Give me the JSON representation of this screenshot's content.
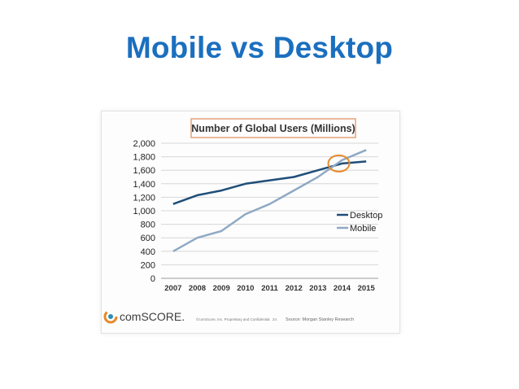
{
  "slide": {
    "title": "Mobile vs Desktop"
  },
  "chart_data": {
    "type": "line",
    "title": "Number of Global Users (Millions)",
    "x": [
      "2007",
      "2008",
      "2009",
      "2010",
      "2011",
      "2012",
      "2013",
      "2014",
      "2015"
    ],
    "series": [
      {
        "name": "Desktop",
        "values": [
          1100,
          1230,
          1300,
          1400,
          1450,
          1500,
          1600,
          1700,
          1730
        ],
        "color": "#1f4e79"
      },
      {
        "name": "Mobile",
        "values": [
          400,
          600,
          700,
          950,
          1100,
          1300,
          1500,
          1750,
          1900
        ],
        "color": "#8fa9c4"
      }
    ],
    "ylim": [
      0,
      2000
    ],
    "yticks": [
      "0",
      "200",
      "400",
      "600",
      "800",
      "1,000",
      "1,200",
      "1,400",
      "1,600",
      "1,800",
      "2,000"
    ],
    "grid": true,
    "legend": "right",
    "annotation": {
      "type": "circle",
      "x": "2014",
      "y": 1700,
      "color": "#e8892b"
    }
  },
  "footer": {
    "logo_text": "comSCORE.",
    "copyright": "©comScore, Inc. Proprietary and Confidential.",
    "page": "24",
    "source": "Source: Morgan Stanley Research"
  },
  "colors": {
    "title": "#1b6fbf",
    "logo_orange": "#e8892b",
    "logo_teal": "#2a8fb4"
  }
}
